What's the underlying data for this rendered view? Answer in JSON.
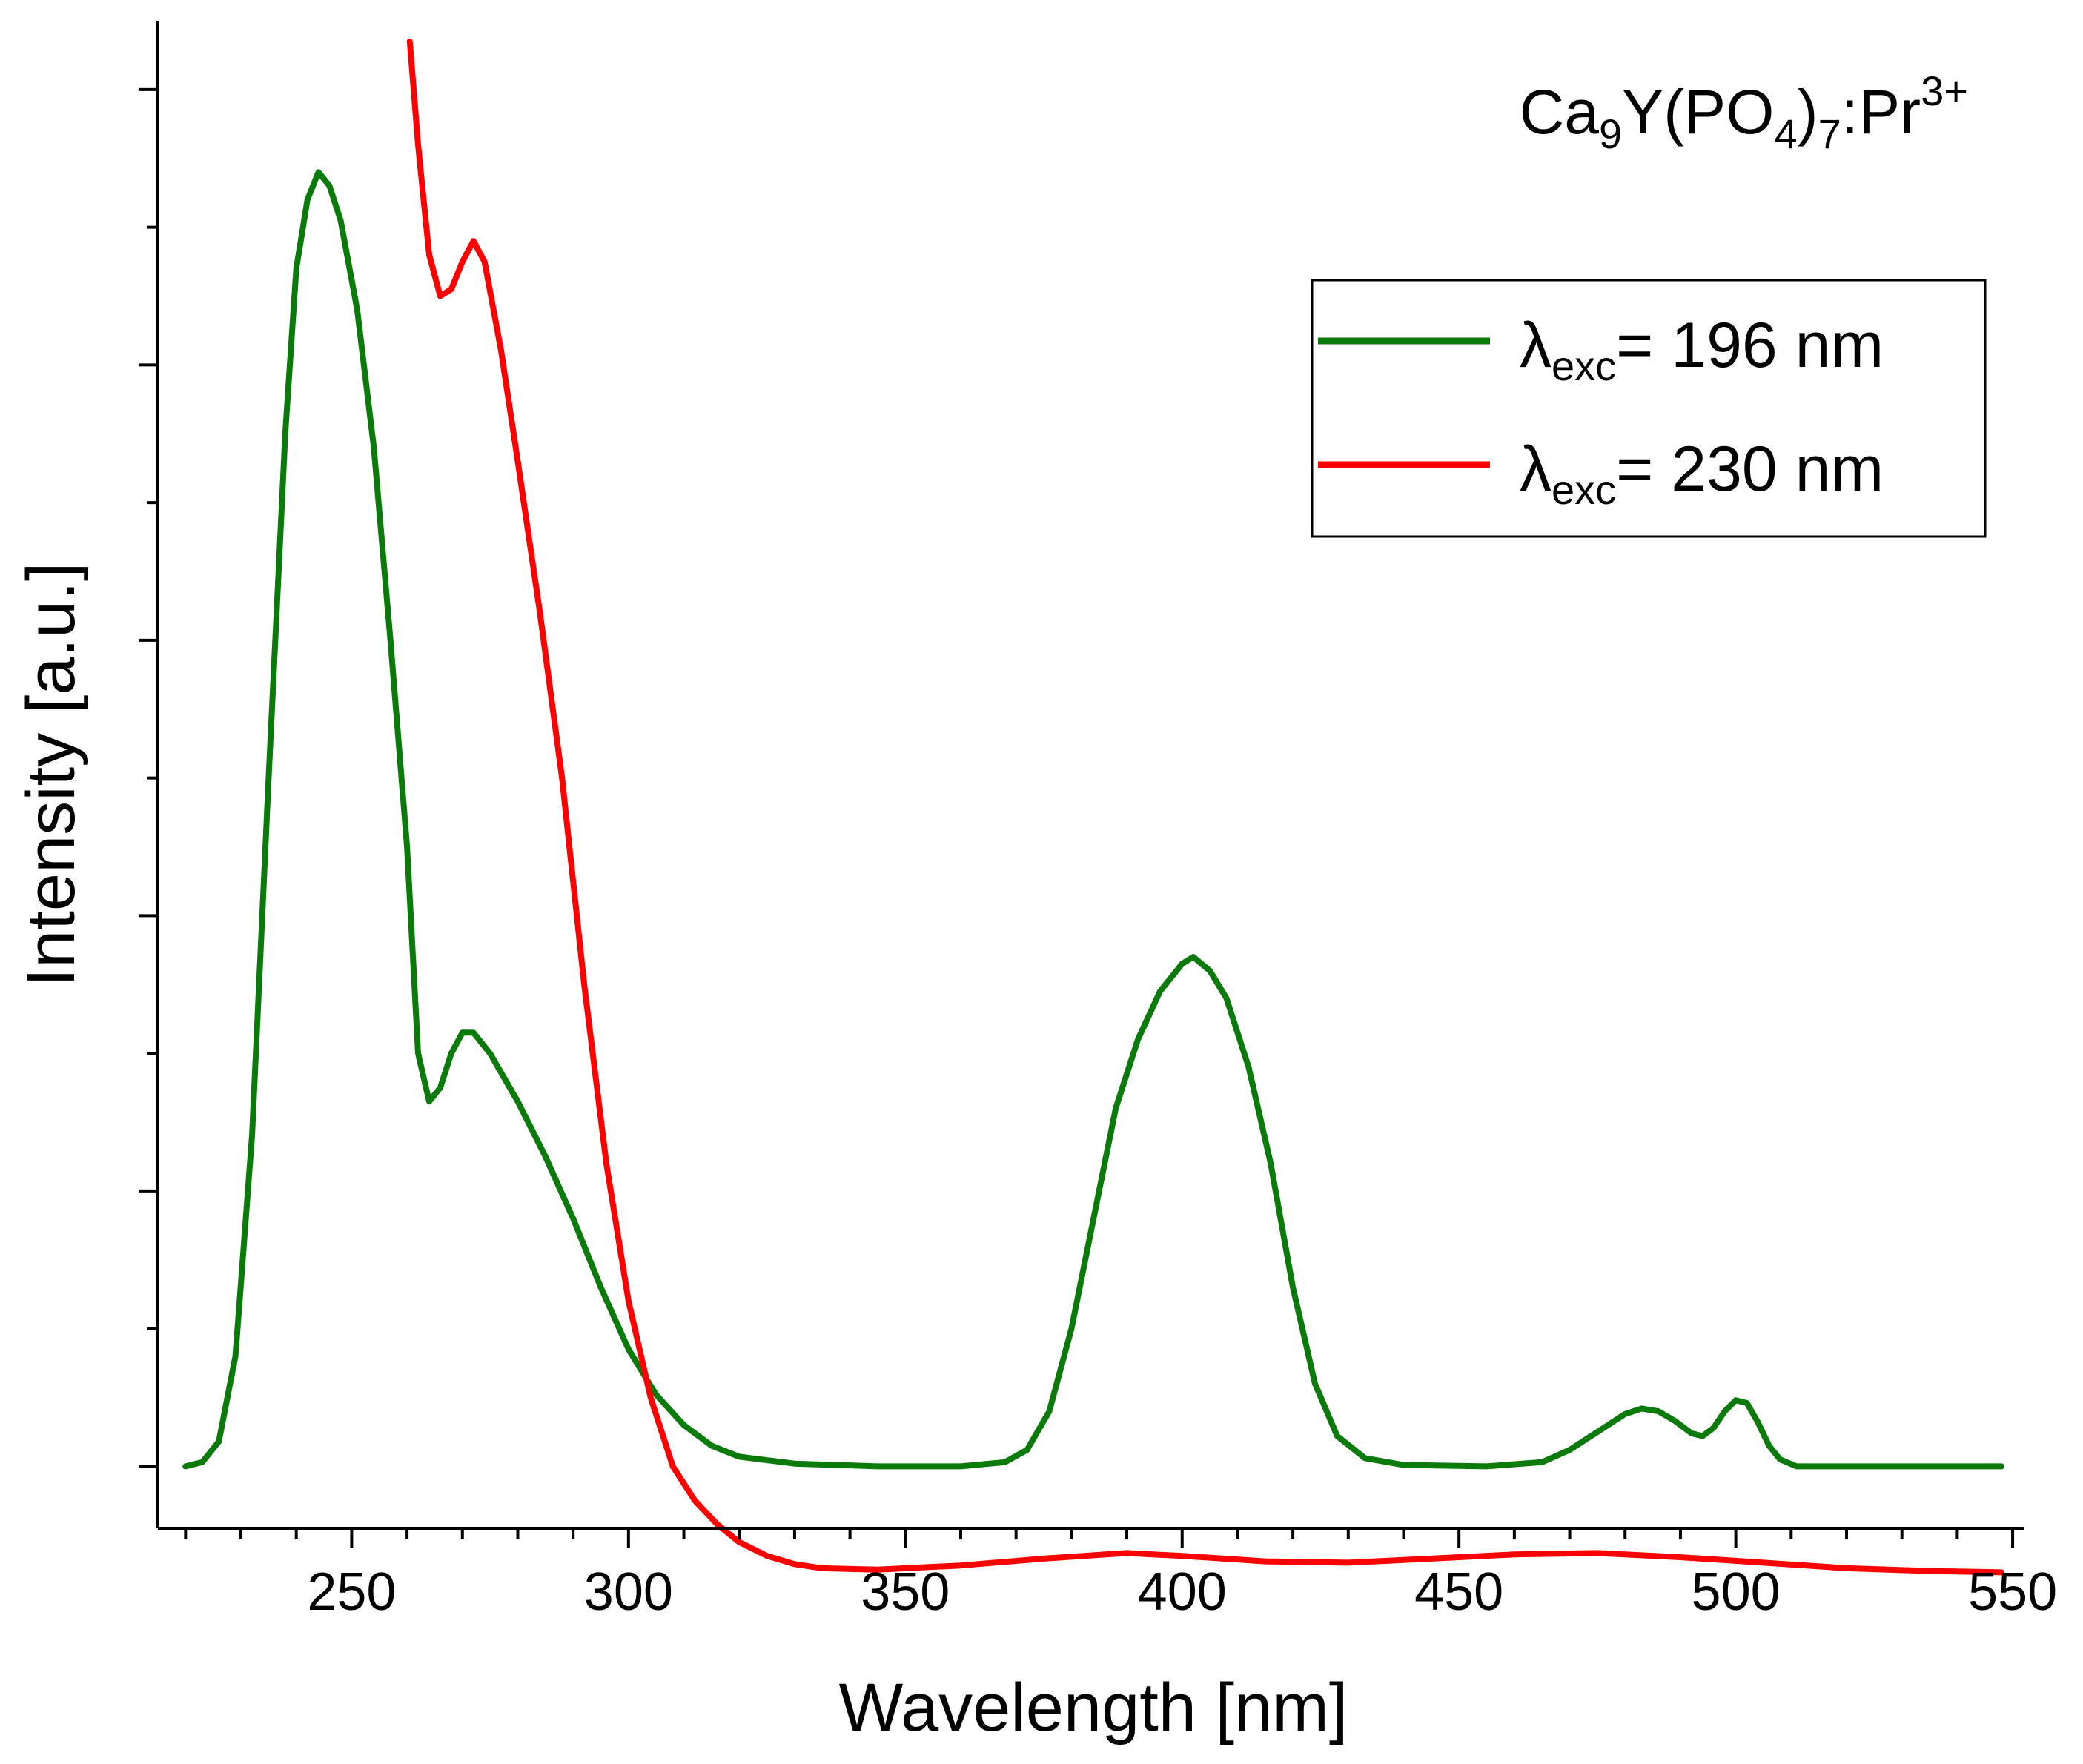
{
  "chart_data": {
    "type": "line",
    "title": "",
    "annotation": {
      "base": "Ca",
      "sub1": "9",
      "mid": "Y(PO",
      "sub2": "4",
      "close": ")",
      "sub3": "7",
      "tail": ":Pr",
      "sup": "3+"
    },
    "xlabel": "Wavelength [nm]",
    "ylabel": "Intensity [a.u.]",
    "xlim": [
      215,
      552
    ],
    "ylim": [
      -0.045,
      1.05
    ],
    "xticks": [
      "250",
      "300",
      "350",
      "400",
      "450",
      "500",
      "550"
    ],
    "yticks_count": 6,
    "legend_position": "top-right",
    "series": [
      {
        "name": "λexc= 196 nm",
        "label_symbol": "λ",
        "label_sub": "exc",
        "label_value": "= 196 nm",
        "color": "#0a7a0a",
        "points": [
          [
            220,
            0.0
          ],
          [
            223,
            0.003
          ],
          [
            226,
            0.018
          ],
          [
            229,
            0.08
          ],
          [
            232,
            0.24
          ],
          [
            235,
            0.5
          ],
          [
            238,
            0.75
          ],
          [
            240,
            0.87
          ],
          [
            242,
            0.92
          ],
          [
            244,
            0.94
          ],
          [
            246,
            0.93
          ],
          [
            248,
            0.905
          ],
          [
            251,
            0.84
          ],
          [
            254,
            0.74
          ],
          [
            257,
            0.6
          ],
          [
            260,
            0.45
          ],
          [
            262,
            0.3
          ],
          [
            264,
            0.265
          ],
          [
            266,
            0.275
          ],
          [
            268,
            0.3
          ],
          [
            270,
            0.315
          ],
          [
            272,
            0.315
          ],
          [
            275,
            0.3
          ],
          [
            280,
            0.265
          ],
          [
            285,
            0.225
          ],
          [
            290,
            0.18
          ],
          [
            295,
            0.13
          ],
          [
            300,
            0.085
          ],
          [
            305,
            0.052
          ],
          [
            310,
            0.03
          ],
          [
            315,
            0.015
          ],
          [
            320,
            0.007
          ],
          [
            330,
            0.002
          ],
          [
            345,
            0.0
          ],
          [
            360,
            0.0
          ],
          [
            368,
            0.003
          ],
          [
            372,
            0.012
          ],
          [
            376,
            0.04
          ],
          [
            380,
            0.1
          ],
          [
            384,
            0.18
          ],
          [
            388,
            0.26
          ],
          [
            392,
            0.31
          ],
          [
            396,
            0.345
          ],
          [
            400,
            0.365
          ],
          [
            402,
            0.37
          ],
          [
            405,
            0.36
          ],
          [
            408,
            0.34
          ],
          [
            412,
            0.29
          ],
          [
            416,
            0.22
          ],
          [
            420,
            0.13
          ],
          [
            424,
            0.06
          ],
          [
            428,
            0.022
          ],
          [
            433,
            0.006
          ],
          [
            440,
            0.001
          ],
          [
            455,
            0.0
          ],
          [
            465,
            0.003
          ],
          [
            470,
            0.012
          ],
          [
            475,
            0.025
          ],
          [
            480,
            0.038
          ],
          [
            483,
            0.042
          ],
          [
            486,
            0.04
          ],
          [
            489,
            0.033
          ],
          [
            492,
            0.024
          ],
          [
            494,
            0.022
          ],
          [
            496,
            0.028
          ],
          [
            498,
            0.04
          ],
          [
            500,
            0.048
          ],
          [
            502,
            0.046
          ],
          [
            504,
            0.032
          ],
          [
            506,
            0.015
          ],
          [
            508,
            0.005
          ],
          [
            511,
            0.0
          ],
          [
            530,
            0.0
          ],
          [
            548,
            0.0
          ]
        ]
      },
      {
        "name": "λexc= 230 nm",
        "label_symbol": "λ",
        "label_sub": "exc",
        "label_value": "= 230 nm",
        "color": "#ff0000",
        "points": [
          [
            260.5,
            1.035
          ],
          [
            262,
            0.96
          ],
          [
            264,
            0.88
          ],
          [
            266,
            0.85
          ],
          [
            268,
            0.855
          ],
          [
            270,
            0.875
          ],
          [
            272,
            0.89
          ],
          [
            274,
            0.875
          ],
          [
            277,
            0.81
          ],
          [
            280,
            0.73
          ],
          [
            284,
            0.62
          ],
          [
            288,
            0.5
          ],
          [
            292,
            0.35
          ],
          [
            296,
            0.22
          ],
          [
            300,
            0.12
          ],
          [
            304,
            0.05
          ],
          [
            308,
            0.0
          ],
          [
            312,
            -0.025
          ],
          [
            316,
            -0.042
          ],
          [
            320,
            -0.055
          ],
          [
            325,
            -0.065
          ],
          [
            330,
            -0.071
          ],
          [
            335,
            -0.074
          ],
          [
            345,
            -0.075
          ],
          [
            360,
            -0.072
          ],
          [
            375,
            -0.067
          ],
          [
            390,
            -0.063
          ],
          [
            400,
            -0.065
          ],
          [
            415,
            -0.069
          ],
          [
            430,
            -0.07
          ],
          [
            445,
            -0.067
          ],
          [
            460,
            -0.064
          ],
          [
            475,
            -0.063
          ],
          [
            490,
            -0.066
          ],
          [
            505,
            -0.07
          ],
          [
            520,
            -0.074
          ],
          [
            535,
            -0.076
          ],
          [
            548,
            -0.077
          ]
        ]
      }
    ]
  }
}
